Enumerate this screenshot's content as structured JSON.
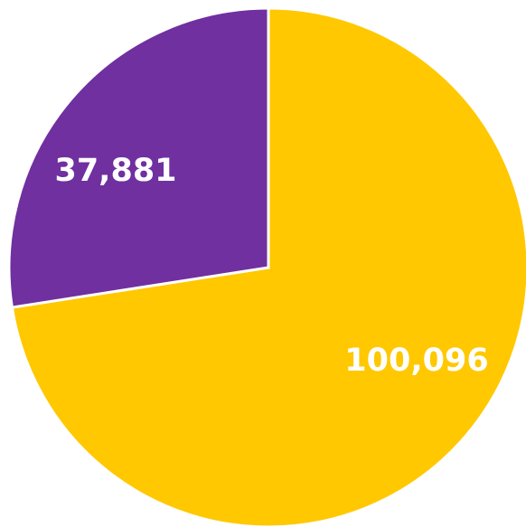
{
  "chart_data": {
    "type": "pie",
    "slices": [
      {
        "label": "100,096",
        "value": 100096,
        "color": "#FFC800"
      },
      {
        "label": "37,881",
        "value": 37881,
        "color": "#7030A0"
      }
    ]
  }
}
